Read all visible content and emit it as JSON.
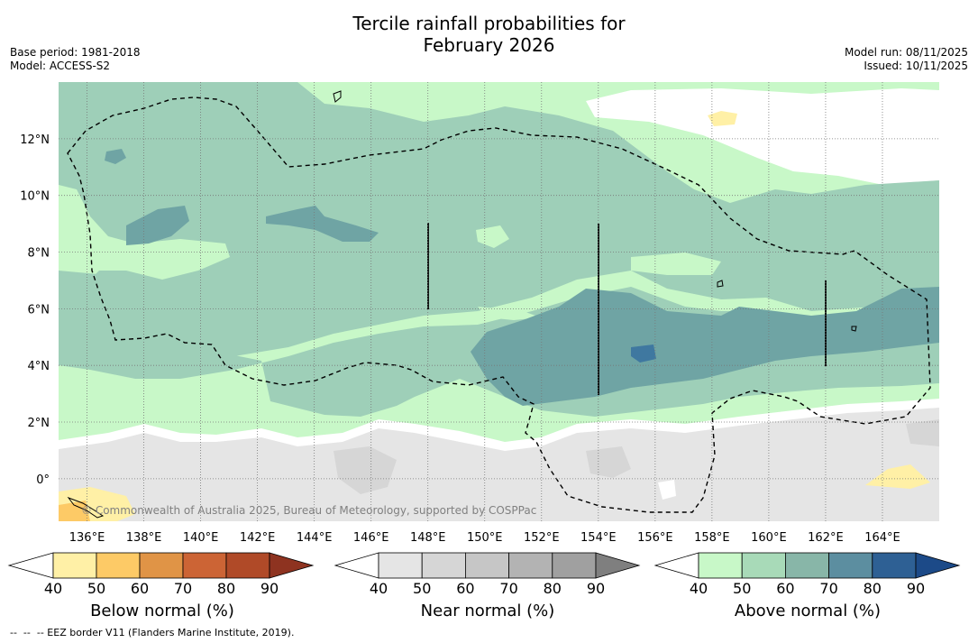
{
  "title": {
    "line1": "Tercile rainfall probabilities for",
    "line2": "February 2026"
  },
  "meta": {
    "base_period": "Base period: 1981-2018",
    "model": "Model: ACCESS-S2",
    "model_run": "Model run: 08/11/2025",
    "issued": "Issued: 10/11/2025"
  },
  "map": {
    "lon_range": [
      135,
      166
    ],
    "lat_range": [
      -1.5,
      14
    ],
    "lon_ticks": [
      136,
      138,
      140,
      142,
      144,
      146,
      148,
      150,
      152,
      154,
      156,
      158,
      160,
      162,
      164
    ],
    "lon_labels": [
      "136°E",
      "138°E",
      "140°E",
      "142°E",
      "144°E",
      "146°E",
      "148°E",
      "150°E",
      "152°E",
      "154°E",
      "156°E",
      "158°E",
      "160°E",
      "162°E",
      "164°E"
    ],
    "lat_ticks": [
      0,
      2,
      4,
      6,
      8,
      10,
      12
    ],
    "lat_labels": [
      "0°",
      "2°N",
      "4°N",
      "6°N",
      "8°N",
      "10°N",
      "12°N"
    ],
    "copyright": "© Commonwealth of Australia 2025, Bureau of Meteorology, supported by COSPPac"
  },
  "colorbars": [
    {
      "title": "Below normal (%)",
      "colors": [
        "#fff0a6",
        "#fdca66",
        "#e09446",
        "#cc6435",
        "#b04a28",
        "#8e3320"
      ],
      "labels": [
        "40",
        "50",
        "60",
        "70",
        "80",
        "90"
      ]
    },
    {
      "title": "Near normal (%)",
      "colors": [
        "#e5e5e5",
        "#d6d6d6",
        "#c6c6c6",
        "#b3b3b3",
        "#a0a0a0",
        "#7f7f7f"
      ],
      "labels": [
        "40",
        "50",
        "60",
        "70",
        "80",
        "90"
      ]
    },
    {
      "title": "Above normal (%)",
      "colors": [
        "#c8f8c8",
        "#a8dab8",
        "#88b6a8",
        "#5c8ea0",
        "#2e6094",
        "#1c4a88"
      ],
      "labels": [
        "40",
        "50",
        "60",
        "70",
        "80",
        "90"
      ]
    }
  ],
  "footer": "--  --  -- EEZ border V11 (Flanders Marine Institute, 2019)."
}
